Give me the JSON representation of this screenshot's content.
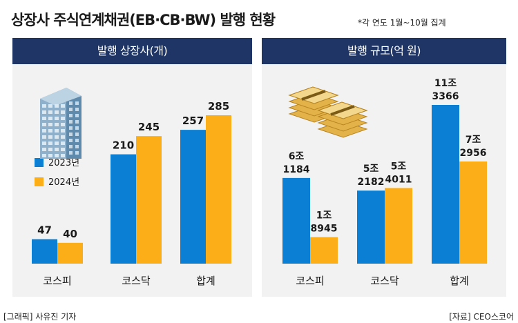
{
  "title": "상장사 주식연계채권(EB·CB·BW) 발행 현황",
  "note": "*각 연도 1월~10월 집계",
  "footer": {
    "credit": "[그래픽] 사유진 기자",
    "source": "[자료] CEO스코어"
  },
  "colors": {
    "y2023": "#0a7fd4",
    "y2024": "#fbae17",
    "header": "#1e3566",
    "panel": "#f2f2f2"
  },
  "chart_data": [
    {
      "type": "bar",
      "title": "발행 상장사(개)",
      "categories": [
        "코스피",
        "코스닥",
        "합계"
      ],
      "series": [
        {
          "name": "2023년",
          "values": [
            47,
            210,
            257
          ],
          "labels": [
            "47",
            "210",
            "257"
          ]
        },
        {
          "name": "2024년",
          "values": [
            40,
            245,
            285
          ],
          "labels": [
            "40",
            "245",
            "285"
          ]
        }
      ],
      "legend": "left",
      "icon": "building-icon"
    },
    {
      "type": "bar",
      "title": "발행 규모(억 원)",
      "categories": [
        "코스피",
        "코스닥",
        "합계"
      ],
      "series": [
        {
          "name": "2023년",
          "values": [
            61184,
            52182,
            113366
          ],
          "labels": [
            [
              "6조",
              "1184"
            ],
            [
              "5조",
              "2182"
            ],
            [
              "11조",
              "3366"
            ]
          ]
        },
        {
          "name": "2024년",
          "values": [
            18945,
            54011,
            72956
          ],
          "labels": [
            [
              "1조",
              "8945"
            ],
            [
              "5조",
              "4011"
            ],
            [
              "7조",
              "2956"
            ]
          ]
        }
      ],
      "icon": "money-stack-icon"
    }
  ]
}
